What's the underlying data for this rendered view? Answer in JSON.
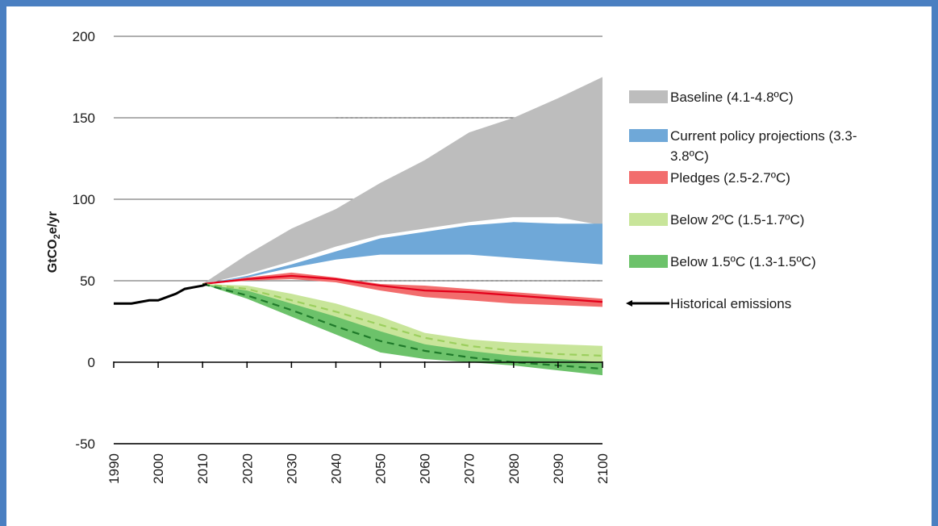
{
  "colors": {
    "frame": "#4a7fc1",
    "baseline": "#bdbdbd",
    "current_policy": "#6fa8d8",
    "pledges": "#f26d6d",
    "pledges_line": "#e3001b",
    "below2": "#c8e59a",
    "below2_line": "#9ccf5e",
    "below15": "#6cc26a",
    "below15_line": "#1f7a2a",
    "historical": "#000000"
  },
  "chart_data": {
    "type": "area",
    "title": "",
    "xlabel": "",
    "ylabel_main": "GtCO",
    "ylabel_sub": "2",
    "ylabel_rest": "e/yr",
    "xlim": [
      1990,
      2100
    ],
    "ylim": [
      -50,
      200
    ],
    "x_ticks": [
      "1990",
      "2000",
      "2010",
      "2020",
      "2030",
      "2040",
      "2050",
      "2060",
      "2070",
      "2080",
      "2090",
      "2100"
    ],
    "y_ticks": [
      "200",
      "150",
      "100",
      "50",
      "0",
      "-50"
    ],
    "series": [
      {
        "name": "Baseline (4.1-4.8ºC)",
        "kind": "band",
        "x": [
          2010,
          2020,
          2030,
          2040,
          2050,
          2060,
          2070,
          2080,
          2090,
          2100
        ],
        "upper": [
          48,
          66,
          82,
          94,
          110,
          124,
          141,
          150,
          162,
          175
        ],
        "lower": [
          48,
          54,
          62,
          71,
          78,
          82,
          86,
          89,
          89,
          84
        ]
      },
      {
        "name": "Current policy projections (3.3-3.8ºC)",
        "kind": "band",
        "x": [
          2010,
          2020,
          2030,
          2040,
          2050,
          2060,
          2070,
          2080,
          2090,
          2100
        ],
        "upper": [
          48,
          53,
          60,
          68,
          76,
          80,
          84,
          86,
          85,
          85
        ],
        "lower": [
          48,
          52,
          58,
          63,
          66,
          66,
          66,
          64,
          62,
          60
        ]
      },
      {
        "name": "Pledges (2.5-2.7ºC)",
        "kind": "band_line",
        "x": [
          2010,
          2020,
          2030,
          2040,
          2050,
          2060,
          2070,
          2080,
          2090,
          2100
        ],
        "upper": [
          48,
          52,
          55,
          52,
          48,
          47,
          45,
          43,
          41,
          39
        ],
        "lower": [
          48,
          50,
          51,
          49,
          44,
          40,
          38,
          36,
          35,
          34
        ],
        "line": [
          48,
          51,
          53,
          51,
          47,
          44,
          43,
          41,
          39,
          37
        ]
      },
      {
        "name": "Below 2ºC (1.5-1.7ºC)",
        "kind": "band_line",
        "x": [
          2010,
          2020,
          2030,
          2040,
          2050,
          2060,
          2070,
          2080,
          2090,
          2100
        ],
        "upper": [
          48,
          47,
          42,
          36,
          28,
          18,
          14,
          12,
          11,
          10
        ],
        "lower": [
          48,
          43,
          33,
          24,
          15,
          9,
          5,
          2,
          0,
          -1
        ],
        "line": [
          48,
          45,
          38,
          31,
          23,
          15,
          10,
          7,
          5,
          4
        ],
        "dashed": true
      },
      {
        "name": "Below 1.5ºC (1.3-1.5ºC)",
        "kind": "band_line",
        "x": [
          2010,
          2020,
          2030,
          2040,
          2050,
          2060,
          2070,
          2080,
          2090,
          2100
        ],
        "upper": [
          48,
          44,
          36,
          28,
          19,
          11,
          7,
          4,
          2,
          0
        ],
        "lower": [
          48,
          39,
          28,
          17,
          6,
          2,
          0,
          -2,
          -5,
          -8
        ],
        "line": [
          48,
          41,
          32,
          22,
          13,
          7,
          3,
          0,
          -2,
          -4
        ],
        "dashed": true
      },
      {
        "name": "Historical emissions",
        "kind": "line",
        "x": [
          1990,
          1992,
          1994,
          1996,
          1998,
          2000,
          2002,
          2004,
          2006,
          2008,
          2010,
          2011
        ],
        "values": [
          36,
          36,
          36,
          37,
          38,
          38,
          40,
          42,
          45,
          46,
          47,
          48
        ]
      }
    ],
    "legend": [
      {
        "label": "Baseline (4.1-4.8ºC)",
        "line2": "",
        "swatch": "box",
        "color_key": "baseline"
      },
      {
        "label": "Current policy projections (3.3-",
        "line2": "3.8ºC)",
        "swatch": "box",
        "color_key": "current_policy"
      },
      {
        "label": "Pledges (2.5-2.7ºC)",
        "line2": "",
        "swatch": "box",
        "color_key": "pledges"
      },
      {
        "label": "Below 2ºC (1.5-1.7ºC)",
        "line2": "",
        "swatch": "box",
        "color_key": "below2"
      },
      {
        "label": "Below 1.5ºC (1.3-1.5ºC)",
        "line2": "",
        "swatch": "box",
        "color_key": "below15"
      },
      {
        "label": "Historical emissions",
        "line2": "",
        "swatch": "line",
        "color_key": "historical"
      }
    ],
    "legend_placement": "right",
    "grid": "horizontal"
  }
}
